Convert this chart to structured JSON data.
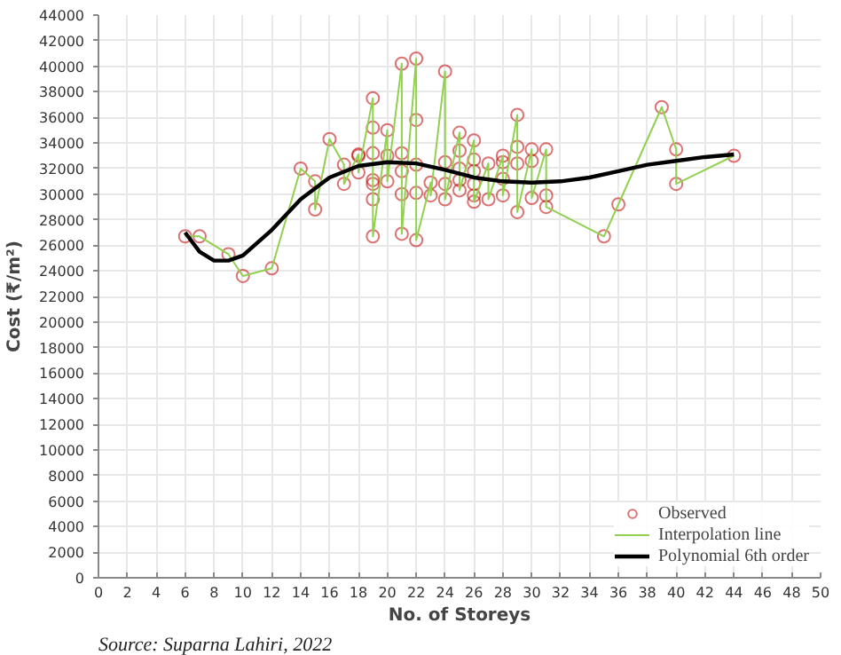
{
  "chart_data": {
    "type": "line",
    "xlabel": "No. of Storeys",
    "ylabel": "Cost (₹/m²)",
    "annotations": [
      "Source: Suparna Lahiri, 2022"
    ],
    "xlim": [
      0,
      50
    ],
    "xticks": [
      0,
      2,
      4,
      6,
      8,
      10,
      12,
      14,
      16,
      18,
      20,
      22,
      24,
      26,
      28,
      30,
      32,
      34,
      36,
      38,
      40,
      42,
      44,
      46,
      48,
      50
    ],
    "ylim": [
      0,
      44000
    ],
    "yticks": [
      0,
      2000,
      4000,
      6000,
      8000,
      10000,
      12000,
      14000,
      16000,
      18000,
      20000,
      22000,
      24000,
      26000,
      28000,
      30000,
      32000,
      34000,
      36000,
      38000,
      40000,
      42000,
      44000
    ],
    "grid": true,
    "legend": "bottom right",
    "series": [
      {
        "name": "Observed",
        "type": "scatter",
        "marker": "circle",
        "color": "#c00000",
        "x": [
          6,
          7,
          9,
          10,
          12,
          14,
          15,
          15,
          16,
          17,
          17,
          18,
          18,
          18,
          19,
          19,
          19,
          19,
          19,
          19,
          19,
          20,
          20,
          20,
          21,
          21,
          21,
          21,
          21,
          22,
          22,
          22,
          22,
          22,
          23,
          23,
          24,
          24,
          24,
          24,
          25,
          25,
          25,
          25,
          25,
          26,
          26,
          26,
          26,
          26,
          26,
          27,
          27,
          28,
          28,
          28,
          28,
          29,
          29,
          29,
          29,
          30,
          30,
          30,
          31,
          31,
          31,
          35,
          36,
          39,
          40,
          40,
          44
        ],
        "values": [
          26700,
          26700,
          25300,
          23600,
          24200,
          32000,
          31000,
          28800,
          34300,
          32300,
          30800,
          33100,
          33000,
          31700,
          37500,
          35200,
          33200,
          31100,
          30800,
          29600,
          26700,
          35000,
          33000,
          31000,
          40200,
          33200,
          31800,
          30000,
          26900,
          40600,
          35800,
          32300,
          30100,
          26400,
          30900,
          29900,
          39600,
          32500,
          30800,
          29600,
          34800,
          33400,
          32000,
          31100,
          30300,
          34200,
          32700,
          31800,
          30800,
          29900,
          29400,
          32400,
          29600,
          33000,
          32500,
          31200,
          29900,
          36200,
          33700,
          32400,
          28600,
          33500,
          32600,
          29700,
          33500,
          29900,
          29000,
          26700,
          29200,
          36800,
          33500,
          30800,
          33000
        ]
      },
      {
        "name": "Interpolation line",
        "marker": "none",
        "color": "#92d050",
        "x": [
          6,
          7,
          9,
          10,
          12,
          14,
          15,
          15,
          16,
          17,
          17,
          18,
          18,
          18,
          19,
          19,
          19,
          19,
          19,
          19,
          19,
          20,
          20,
          20,
          21,
          21,
          21,
          21,
          21,
          22,
          22,
          22,
          22,
          22,
          23,
          23,
          24,
          24,
          24,
          24,
          25,
          25,
          25,
          25,
          25,
          26,
          26,
          26,
          26,
          26,
          26,
          27,
          27,
          28,
          28,
          28,
          28,
          29,
          29,
          29,
          29,
          30,
          30,
          30,
          31,
          31,
          31,
          35,
          36,
          39,
          40,
          40,
          44
        ],
        "values": [
          26700,
          26700,
          25300,
          23600,
          24200,
          32000,
          31000,
          28800,
          34300,
          32300,
          30800,
          33100,
          33000,
          31700,
          37500,
          35200,
          33200,
          31100,
          30800,
          29600,
          26700,
          35000,
          33000,
          31000,
          40200,
          33200,
          31800,
          30000,
          26900,
          40600,
          35800,
          32300,
          30100,
          26400,
          30900,
          29900,
          39600,
          32500,
          30800,
          29600,
          34800,
          33400,
          32000,
          31100,
          30300,
          34200,
          32700,
          31800,
          30800,
          29900,
          29400,
          32400,
          29600,
          33000,
          32500,
          31200,
          29900,
          36200,
          33700,
          32400,
          28600,
          33500,
          32600,
          29700,
          33500,
          29900,
          29000,
          26700,
          29200,
          36800,
          33500,
          30800,
          33000
        ]
      },
      {
        "name": "Polynomial 6th order",
        "marker": "none",
        "color": "#000000",
        "x": [
          6,
          7,
          8,
          9,
          10,
          12,
          14,
          16,
          18,
          20,
          22,
          24,
          26,
          28,
          30,
          32,
          34,
          36,
          38,
          40,
          42,
          44
        ],
        "values": [
          27000,
          25500,
          24800,
          24800,
          25200,
          27200,
          29600,
          31300,
          32200,
          32500,
          32400,
          31900,
          31300,
          31000,
          30900,
          31000,
          31300,
          31800,
          32300,
          32600,
          32900,
          33100
        ]
      }
    ]
  }
}
